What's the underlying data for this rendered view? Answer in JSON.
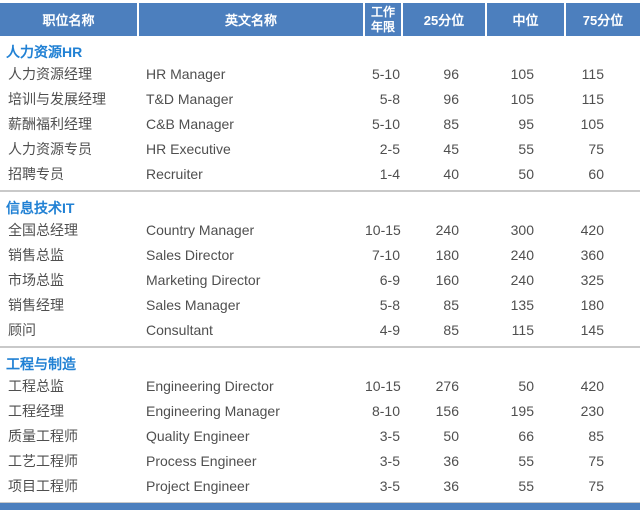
{
  "colors": {
    "header_bg": "#4c7fbe",
    "header_text": "#ffffff",
    "section_title_blue": "#2181d4",
    "body_text": "#4f4f4f",
    "separator_gray": "#c9c9c9",
    "bottom_bar": "#4c7fbe"
  },
  "table": {
    "columns": [
      "职位名称",
      "英文名称",
      "工作年限",
      "25分位",
      "中位",
      "75分位"
    ],
    "sections": [
      {
        "title": "人力资源HR",
        "rows": [
          [
            "人力资源经理",
            "HR Manager",
            "5-10",
            "96",
            "105",
            "115"
          ],
          [
            "培训与发展经理",
            "T&D Manager",
            "5-8",
            "96",
            "105",
            "115"
          ],
          [
            "薪酬福利经理",
            "C&B Manager",
            "5-10",
            "85",
            "95",
            "105"
          ],
          [
            "人力资源专员",
            "HR Executive",
            "2-5",
            "45",
            "55",
            "75"
          ],
          [
            "招聘专员",
            "Recruiter",
            "1-4",
            "40",
            "50",
            "60"
          ]
        ]
      },
      {
        "title": "信息技术IT",
        "rows": [
          [
            "全国总经理",
            "Country Manager",
            "10-15",
            "240",
            "300",
            "420"
          ],
          [
            "销售总监",
            "Sales Director",
            "7-10",
            "180",
            "240",
            "360"
          ],
          [
            "市场总监",
            "Marketing Director",
            "6-9",
            "160",
            "240",
            "325"
          ],
          [
            "销售经理",
            "Sales Manager",
            "5-8",
            "85",
            "135",
            "180"
          ],
          [
            "顾问",
            "Consultant",
            "4-9",
            "85",
            "115",
            "145"
          ]
        ]
      },
      {
        "title": "工程与制造",
        "rows": [
          [
            "工程总监",
            "Engineering Director",
            "10-15",
            "276",
            "50",
            "420"
          ],
          [
            "工程经理",
            "Engineering Manager",
            "8-10",
            "156",
            "195",
            "230"
          ],
          [
            "质量工程师",
            "Quality Engineer",
            "3-5",
            "50",
            "66",
            "85"
          ],
          [
            "工艺工程师",
            "Process Engineer",
            "3-5",
            "36",
            "55",
            "75"
          ],
          [
            "项目工程师",
            "Project Engineer",
            "3-5",
            "36",
            "55",
            "75"
          ]
        ]
      }
    ]
  }
}
